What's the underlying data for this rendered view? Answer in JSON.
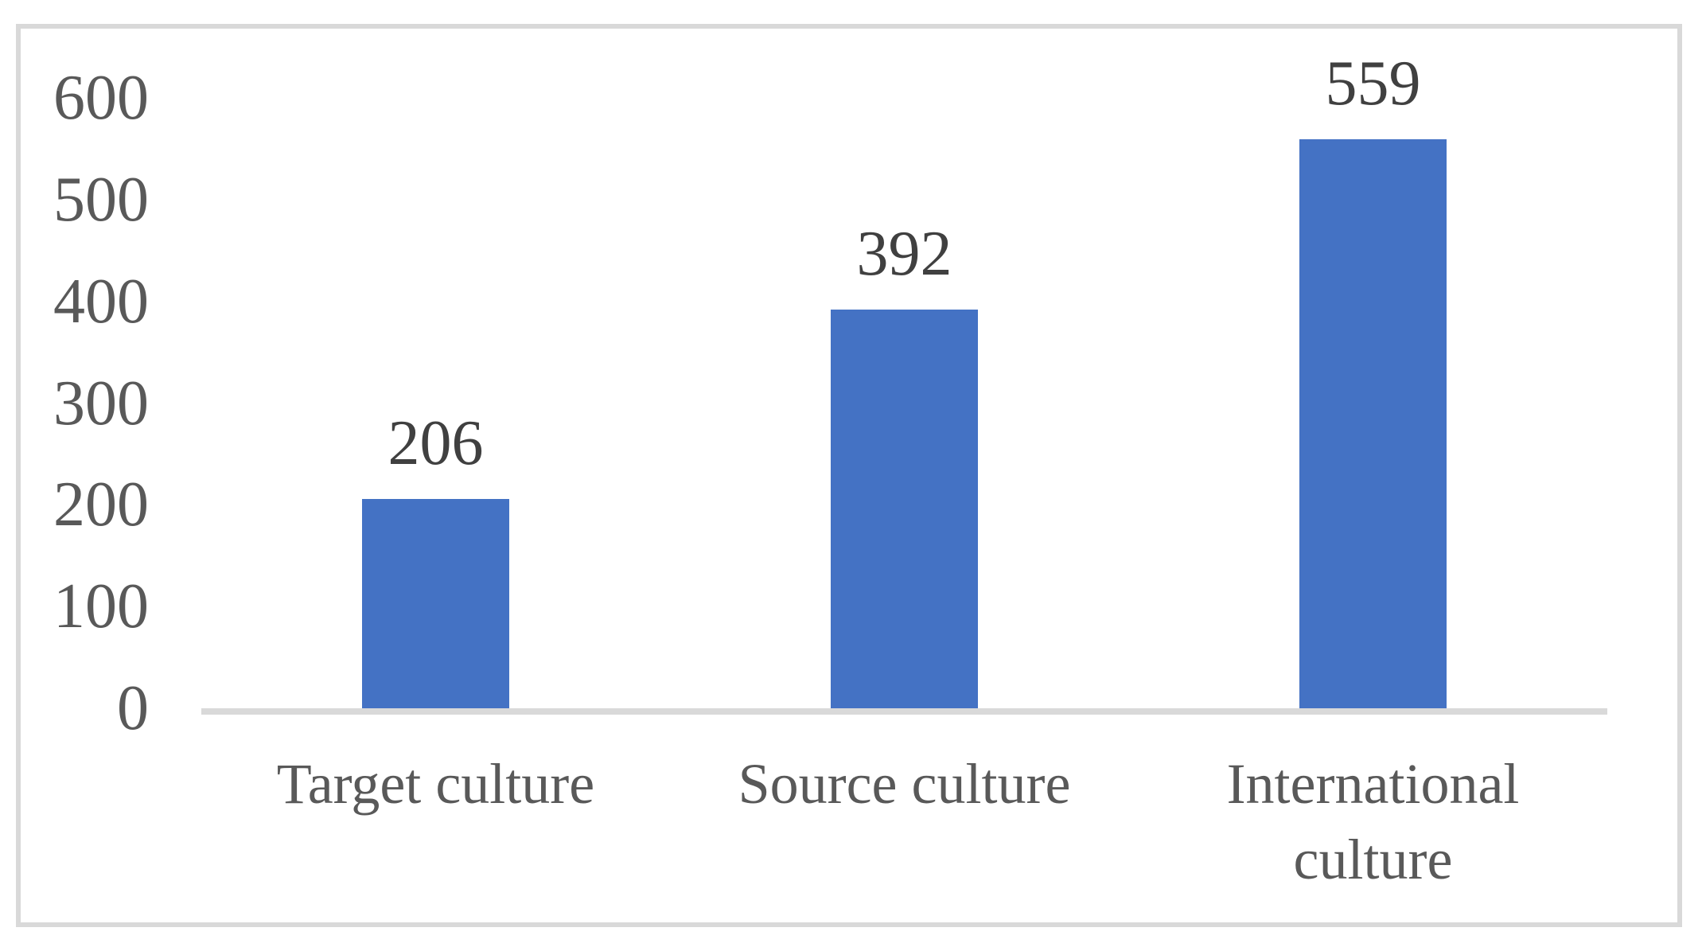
{
  "chart_data": {
    "type": "bar",
    "categories": [
      "Target culture",
      "Source culture",
      "International culture"
    ],
    "values": [
      206,
      392,
      559
    ],
    "data_labels": [
      "206",
      "392",
      "559"
    ],
    "yticks": [
      0,
      100,
      200,
      300,
      400,
      500,
      600
    ],
    "ylim": [
      0,
      600
    ],
    "title": "",
    "xlabel": "",
    "ylabel": "",
    "grid": false,
    "legend": false,
    "colors": {
      "bar": "#4472c4",
      "axis_line": "#d9d9d9",
      "frame_border": "#d9d9d9",
      "tick_label_text": "#595959",
      "category_label_text": "#595959",
      "data_label_text": "#404040"
    }
  }
}
